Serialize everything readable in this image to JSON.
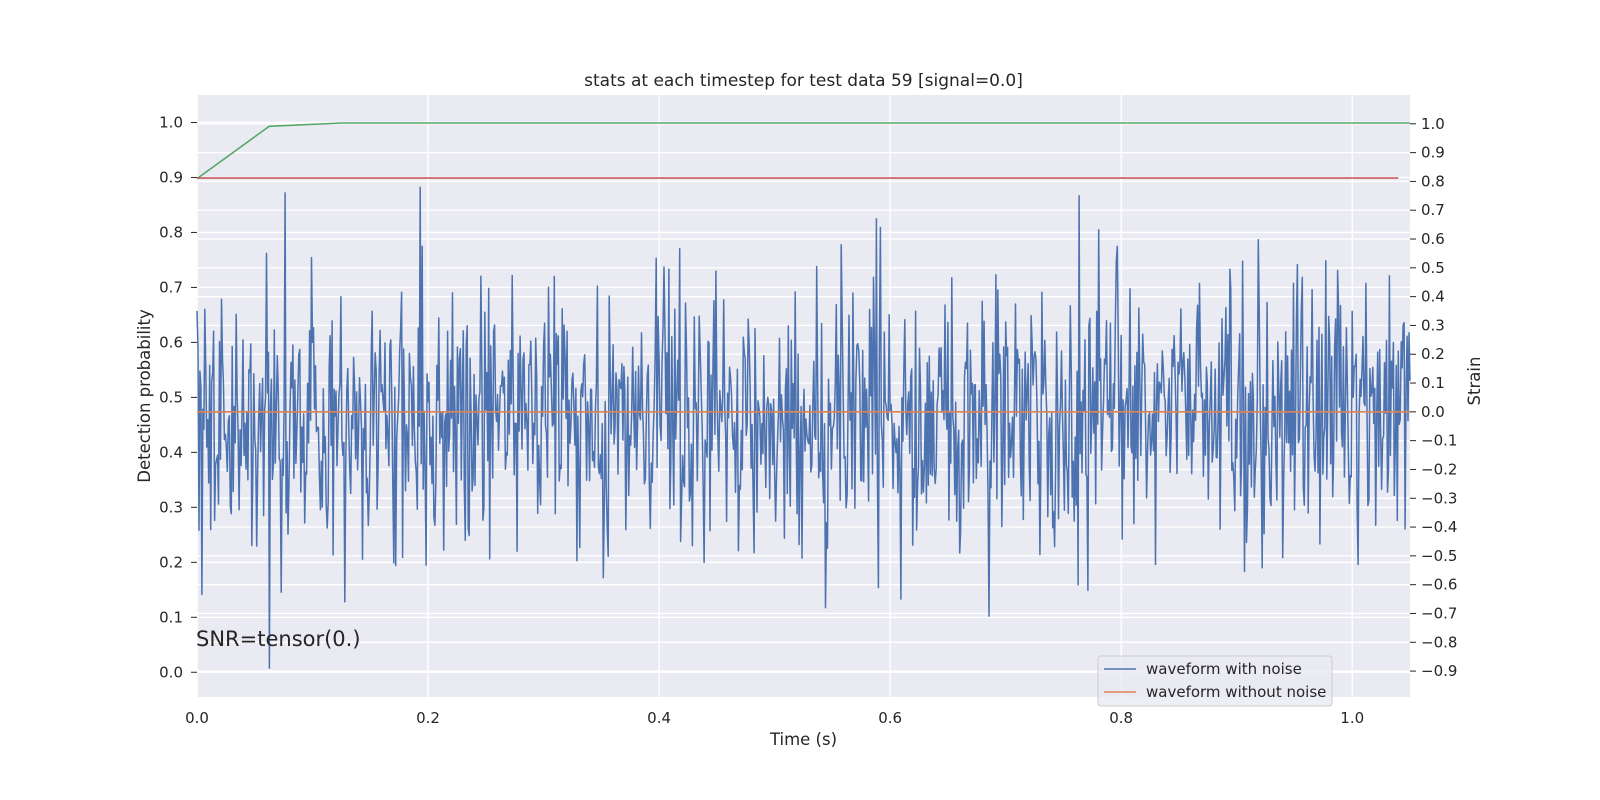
{
  "chart_data": {
    "type": "line",
    "title": "stats at each timestep for test data 59 [signal=0.0]",
    "xlabel": "Time (s)",
    "ylabel": "Detection probability",
    "ylabel_right": "Strain",
    "xlim": [
      0.0,
      1.05
    ],
    "ylim": [
      -0.045,
      1.05
    ],
    "ylim_right": [
      -0.99,
      1.1
    ],
    "x_ticks": [
      "0.0",
      "0.2",
      "0.4",
      "0.6",
      "0.8",
      "1.0"
    ],
    "y_ticks": [
      "0.0",
      "0.1",
      "0.2",
      "0.3",
      "0.4",
      "0.5",
      "0.6",
      "0.7",
      "0.8",
      "0.9",
      "1.0"
    ],
    "y_ticks_right": [
      "−0.9",
      "−0.8",
      "−0.7",
      "−0.6",
      "−0.5",
      "−0.4",
      "−0.3",
      "−0.2",
      "−0.1",
      "0.0",
      "0.1",
      "0.2",
      "0.3",
      "0.4",
      "0.5",
      "0.6",
      "0.7",
      "0.8",
      "0.9",
      "1.0"
    ],
    "grid": true,
    "legend_position": "lower-right",
    "annotation": "SNR=tensor(0.)",
    "series": [
      {
        "name": "waveform with noise",
        "axis": "right",
        "color": "#4c72b0",
        "kind": "noise",
        "x_range": [
          0.0,
          1.05
        ],
        "count": 1240,
        "mean": 0.0,
        "std": 0.23,
        "min": -0.89,
        "max": 0.81,
        "peaks": [
          {
            "x": 0.0,
            "y": 0.35
          },
          {
            "x": 0.0603,
            "y": 0.55
          },
          {
            "x": 0.0623,
            "y": -0.89
          },
          {
            "x": 0.0765,
            "y": 0.76
          },
          {
            "x": 0.128,
            "y": -0.66
          },
          {
            "x": 0.1936,
            "y": 0.78
          },
          {
            "x": 0.5444,
            "y": -0.68
          },
          {
            "x": 0.588,
            "y": 0.67
          },
          {
            "x": 0.5916,
            "y": 0.64
          },
          {
            "x": 0.6095,
            "y": -0.65
          },
          {
            "x": 0.6856,
            "y": -0.71
          },
          {
            "x": 0.7634,
            "y": 0.75
          },
          {
            "x": 0.7626,
            "y": -0.6
          },
          {
            "x": 0.7714,
            "y": -0.62
          },
          {
            "x": 1.0047,
            "y": 0.61
          },
          {
            "x": 1.0047,
            "y": -0.53
          }
        ]
      },
      {
        "name": "waveform without noise",
        "axis": "right",
        "color": "#dd8452",
        "x": [
          0.0,
          1.05
        ],
        "y": [
          0.0,
          0.0
        ]
      },
      {
        "axis": "left",
        "color": "#55a868",
        "x": [
          0.0,
          0.0625,
          0.125,
          1.05
        ],
        "y": [
          0.898,
          0.993,
          0.999,
          0.999
        ]
      },
      {
        "axis": "left",
        "color": "#c44e52",
        "x": [
          0.0,
          1.04
        ],
        "y": [
          0.899,
          0.899
        ]
      }
    ]
  }
}
